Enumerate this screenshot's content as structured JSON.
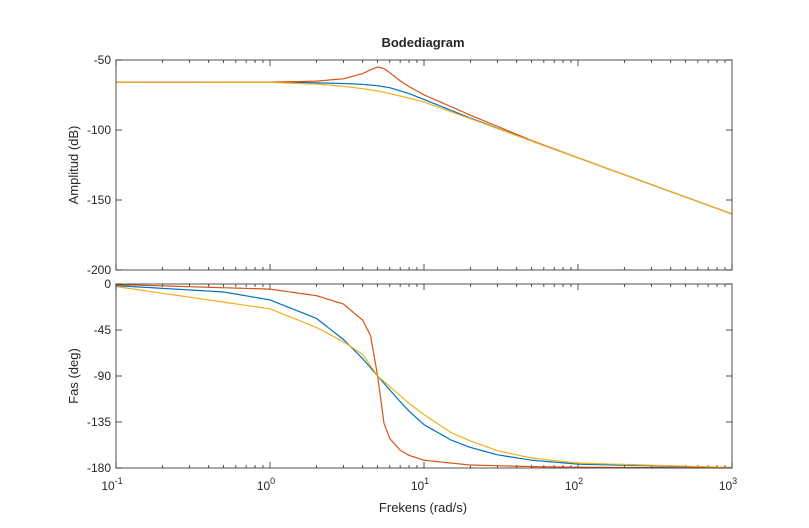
{
  "chart_data": {
    "type": "line",
    "title": "Bodediagram",
    "xlabel": "Frekens  (rad/s)",
    "x_scale": "log",
    "xlim": [
      0.1,
      1000
    ],
    "x_ticks": [
      {
        "base": "10",
        "exp": "-1"
      },
      {
        "base": "10",
        "exp": "0"
      },
      {
        "base": "10",
        "exp": "1"
      },
      {
        "base": "10",
        "exp": "2"
      },
      {
        "base": "10",
        "exp": "3"
      }
    ],
    "grid": false,
    "legend": "none",
    "panels": [
      {
        "name": "magnitude",
        "ylabel": "Amplitud (dB)",
        "ylim": [
          -200,
          -50
        ],
        "y_ticks": [
          "-50",
          "-100",
          "-150",
          "-200"
        ],
        "series": [
          {
            "color": "#0072BD",
            "x": [
              0.1,
              1,
              2,
              3,
              4,
              5,
              6,
              8,
              10,
              20,
              50,
              100,
              1000
            ],
            "y": [
              -65.9,
              -65.9,
              -66.3,
              -66.8,
              -67.4,
              -68.4,
              -69.8,
              -74.0,
              -78.2,
              -91.5,
              -107.8,
              -119.9,
              -160.0
            ]
          },
          {
            "color": "#D95319",
            "x": [
              0.1,
              1,
              2,
              3,
              4,
              4.5,
              5,
              5.5,
              6,
              7,
              8,
              10,
              20,
              50,
              100,
              1000
            ],
            "y": [
              -65.9,
              -65.8,
              -65.1,
              -63.4,
              -59.7,
              -57.0,
              -55.0,
              -56.1,
              -59.1,
              -64.9,
              -69.0,
              -74.9,
              -89.4,
              -107.5,
              -119.8,
              -160.0
            ]
          },
          {
            "color": "#EDB120",
            "x": [
              0.1,
              1,
              2,
              3,
              4,
              5,
              6,
              8,
              10,
              20,
              50,
              100,
              1000
            ],
            "y": [
              -65.9,
              -66.0,
              -67.2,
              -68.8,
              -70.5,
              -72.2,
              -74.0,
              -77.2,
              -80.0,
              -91.9,
              -107.9,
              -119.9,
              -160.0
            ]
          }
        ]
      },
      {
        "name": "phase",
        "ylabel": "Fas (deg)",
        "ylim": [
          -180,
          0
        ],
        "y_ticks": [
          "0",
          "-45",
          "-90",
          "-135",
          "-180"
        ],
        "series": [
          {
            "color": "#0072BD",
            "x": [
              0.1,
              0.5,
              1,
              2,
              3,
              4,
              5,
              6,
              7,
              8,
              10,
              15,
              20,
              30,
              50,
              100,
              1000
            ],
            "y": [
              -1.6,
              -7.8,
              -15.6,
              -33.6,
              -54.3,
              -73.1,
              -90.0,
              -103.7,
              -115.0,
              -124.4,
              -137.6,
              -152.7,
              -159.9,
              -167.1,
              -172.4,
              -176.2,
              -179.6
            ]
          },
          {
            "color": "#D95319",
            "x": [
              0.1,
              1,
              2,
              3,
              4,
              4.5,
              5,
              5.5,
              6,
              7,
              8,
              10,
              20,
              50,
              100,
              1000
            ],
            "y": [
              -0.5,
              -5.0,
              -11.4,
              -19.6,
              -35.5,
              -50.6,
              -90.0,
              -136.4,
              -151.3,
              -162.5,
              -167.6,
              -172.4,
              -177.1,
              -178.6,
              -179.3,
              -179.9
            ]
          },
          {
            "color": "#EDB120",
            "x": [
              0.1,
              1,
              2,
              3,
              4,
              5,
              6,
              8,
              10,
              15,
              20,
              30,
              50,
              100,
              1000
            ],
            "y": [
              -2.5,
              -24.3,
              -42.5,
              -56.5,
              -68.9,
              -90.0,
              -100.4,
              -116.8,
              -127.8,
              -145.4,
              -153.5,
              -163.1,
              -170.2,
              -175.2,
              -179.5
            ]
          }
        ]
      }
    ]
  }
}
